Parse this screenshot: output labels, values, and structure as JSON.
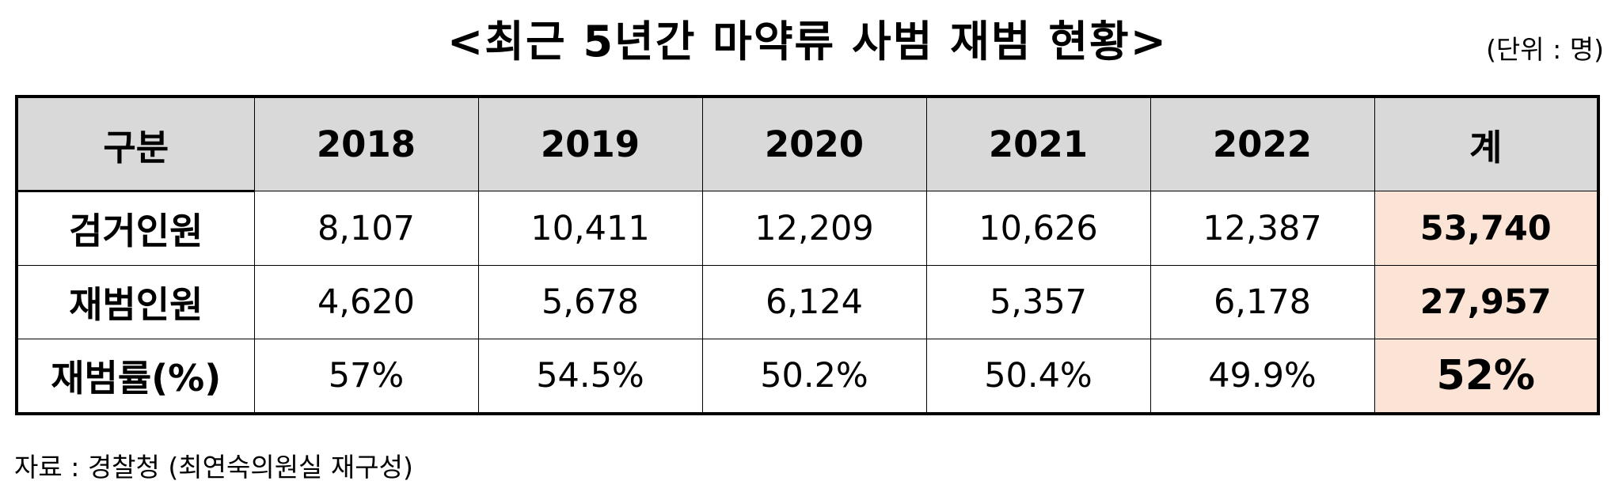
{
  "title": "<최근 5년간 마약류 사범 재범 현황>",
  "unit": "(단위 : 명)",
  "table": {
    "headers": [
      "구분",
      "2018",
      "2019",
      "2020",
      "2021",
      "2022",
      "계"
    ],
    "rows": [
      {
        "label": "검거인원",
        "values": [
          "8,107",
          "10,411",
          "12,209",
          "10,626",
          "12,387"
        ],
        "total": "53,740"
      },
      {
        "label": "재범인원",
        "values": [
          "4,620",
          "5,678",
          "6,124",
          "5,357",
          "6,178"
        ],
        "total": "27,957"
      },
      {
        "label": "재범률(%)",
        "values": [
          "57%",
          "54.5%",
          "50.2%",
          "50.4%",
          "49.9%"
        ],
        "total": "52%"
      }
    ],
    "total_cell_color": "#fbe4d5",
    "header_color": "#d9d9d9"
  },
  "source": "자료 : 경찰청 (최연숙의원실 재구성)"
}
